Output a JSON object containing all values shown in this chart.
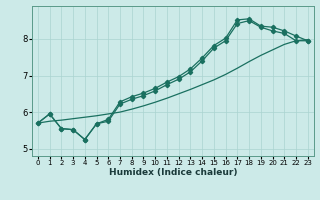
{
  "xlabel": "Humidex (Indice chaleur)",
  "ylabel": "",
  "xlim": [
    -0.5,
    23.5
  ],
  "ylim": [
    4.8,
    8.9
  ],
  "xticks": [
    0,
    1,
    2,
    3,
    4,
    5,
    6,
    7,
    8,
    9,
    10,
    11,
    12,
    13,
    14,
    15,
    16,
    17,
    18,
    19,
    20,
    21,
    22,
    23
  ],
  "yticks": [
    5,
    6,
    7,
    8
  ],
  "bg_color": "#cceae8",
  "line_color": "#1a7060",
  "grid_color": "#aad4d0",
  "line1": {
    "x": [
      0,
      1,
      2,
      3,
      4,
      5,
      6,
      7,
      8,
      9,
      10,
      11,
      12,
      13,
      14,
      15,
      16,
      17,
      18,
      19,
      20,
      21,
      22,
      23
    ],
    "y": [
      5.7,
      5.75,
      5.78,
      5.82,
      5.86,
      5.9,
      5.95,
      6.0,
      6.08,
      6.17,
      6.27,
      6.38,
      6.5,
      6.62,
      6.75,
      6.88,
      7.03,
      7.2,
      7.38,
      7.55,
      7.7,
      7.85,
      7.95,
      7.98
    ]
  },
  "line2": {
    "x": [
      0,
      1,
      2,
      3,
      4,
      5,
      6,
      7,
      8,
      9,
      10,
      11,
      12,
      13,
      14,
      15,
      16,
      17,
      18,
      19,
      20,
      21,
      22,
      23
    ],
    "y": [
      5.7,
      5.95,
      5.55,
      5.52,
      5.25,
      5.68,
      5.75,
      6.22,
      6.35,
      6.45,
      6.58,
      6.75,
      6.9,
      7.1,
      7.4,
      7.75,
      7.95,
      8.42,
      8.5,
      8.32,
      8.22,
      8.15,
      7.95,
      7.95
    ]
  },
  "line3": {
    "x": [
      0,
      1,
      2,
      3,
      4,
      5,
      6,
      7,
      8,
      9,
      10,
      11,
      12,
      13,
      14,
      15,
      16,
      17,
      18,
      19,
      20,
      21,
      22,
      23
    ],
    "y": [
      5.7,
      5.95,
      5.55,
      5.52,
      5.25,
      5.68,
      5.8,
      6.28,
      6.42,
      6.52,
      6.65,
      6.82,
      6.97,
      7.18,
      7.48,
      7.82,
      8.02,
      8.52,
      8.55,
      8.35,
      8.32,
      8.22,
      8.08,
      7.95
    ]
  }
}
